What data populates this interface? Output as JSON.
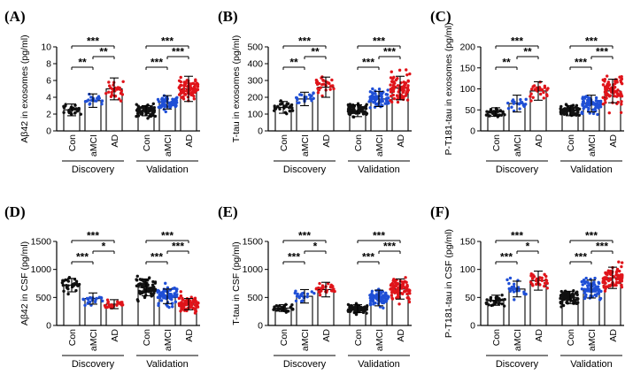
{
  "colors": {
    "Con": "#111111",
    "aMCI": "#1f4fd6",
    "AD": "#e0141a"
  },
  "chart_data": [
    {
      "panel": "(A)",
      "type": "bar",
      "ylabel": "Aβ42 in exosomes (pg/ml)",
      "ylim": [
        0,
        10
      ],
      "yticks": [
        0,
        2,
        4,
        6,
        8,
        10
      ],
      "categories": [
        "Con",
        "aMCI",
        "AD",
        "Con",
        "aMCI",
        "AD"
      ],
      "groups": [
        "Discovery",
        "Validation"
      ],
      "means": [
        2.5,
        3.6,
        5.0,
        2.4,
        3.4,
        5.0
      ],
      "sd": [
        0.7,
        0.8,
        1.3,
        0.6,
        0.8,
        1.5
      ],
      "spread": [
        1.0,
        1.0,
        1.6,
        1.0,
        1.1,
        1.8
      ],
      "n": [
        28,
        20,
        28,
        75,
        70,
        80
      ],
      "sig": [
        {
          "from": 0,
          "to": 1,
          "text": "**",
          "level": 0
        },
        {
          "from": 1,
          "to": 2,
          "text": "**",
          "level": 1
        },
        {
          "from": 0,
          "to": 2,
          "text": "***",
          "level": 2
        },
        {
          "from": 3,
          "to": 4,
          "text": "***",
          "level": 0
        },
        {
          "from": 4,
          "to": 5,
          "text": "***",
          "level": 1
        },
        {
          "from": 3,
          "to": 5,
          "text": "***",
          "level": 2
        }
      ]
    },
    {
      "panel": "(B)",
      "type": "bar",
      "ylabel": "T-tau in exosomes (pg/ml)",
      "ylim": [
        0,
        500
      ],
      "yticks": [
        0,
        100,
        200,
        300,
        400,
        500
      ],
      "categories": [
        "Con",
        "aMCI",
        "AD",
        "Con",
        "aMCI",
        "AD"
      ],
      "groups": [
        "Discovery",
        "Validation"
      ],
      "means": [
        140,
        190,
        260,
        120,
        190,
        255
      ],
      "sd": [
        35,
        40,
        60,
        35,
        45,
        70
      ],
      "spread": [
        50,
        60,
        80,
        55,
        70,
        110
      ],
      "n": [
        28,
        20,
        28,
        75,
        70,
        80
      ],
      "sig": [
        {
          "from": 0,
          "to": 1,
          "text": "**",
          "level": 0
        },
        {
          "from": 1,
          "to": 2,
          "text": "**",
          "level": 1
        },
        {
          "from": 0,
          "to": 2,
          "text": "***",
          "level": 2
        },
        {
          "from": 3,
          "to": 4,
          "text": "***",
          "level": 0
        },
        {
          "from": 4,
          "to": 5,
          "text": "***",
          "level": 1
        },
        {
          "from": 3,
          "to": 5,
          "text": "***",
          "level": 2
        }
      ]
    },
    {
      "panel": "(C)",
      "type": "bar",
      "ylabel": "P-T181-tau in exosomes (pg/ml)",
      "ylim": [
        0,
        200
      ],
      "yticks": [
        0,
        50,
        100,
        150,
        200
      ],
      "categories": [
        "Con",
        "aMCI",
        "AD",
        "Con",
        "aMCI",
        "AD"
      ],
      "groups": [
        "Discovery",
        "Validation"
      ],
      "means": [
        45,
        65,
        95,
        48,
        65,
        95
      ],
      "sd": [
        10,
        20,
        22,
        12,
        20,
        28
      ],
      "spread": [
        15,
        30,
        35,
        20,
        30,
        50
      ],
      "n": [
        28,
        20,
        28,
        75,
        70,
        80
      ],
      "sig": [
        {
          "from": 0,
          "to": 1,
          "text": "**",
          "level": 0
        },
        {
          "from": 1,
          "to": 2,
          "text": "**",
          "level": 1
        },
        {
          "from": 0,
          "to": 2,
          "text": "***",
          "level": 2
        },
        {
          "from": 3,
          "to": 4,
          "text": "***",
          "level": 0
        },
        {
          "from": 4,
          "to": 5,
          "text": "***",
          "level": 1
        },
        {
          "from": 3,
          "to": 5,
          "text": "***",
          "level": 2
        }
      ]
    },
    {
      "panel": "(D)",
      "type": "bar",
      "ylabel": "Aβ42 in CSF (pg/ml)",
      "ylim": [
        0,
        1500
      ],
      "yticks": [
        0,
        500,
        1000,
        1500
      ],
      "categories": [
        "Con",
        "aMCI",
        "AD",
        "Con",
        "aMCI",
        "AD"
      ],
      "groups": [
        "Discovery",
        "Validation"
      ],
      "means": [
        720,
        480,
        380,
        680,
        520,
        380
      ],
      "sd": [
        120,
        100,
        80,
        150,
        130,
        100
      ],
      "spread": [
        200,
        140,
        110,
        260,
        230,
        200
      ],
      "n": [
        28,
        20,
        28,
        75,
        70,
        80
      ],
      "sig": [
        {
          "from": 0,
          "to": 1,
          "text": "***",
          "level": 0
        },
        {
          "from": 1,
          "to": 2,
          "text": "*",
          "level": 1
        },
        {
          "from": 0,
          "to": 2,
          "text": "***",
          "level": 2
        },
        {
          "from": 3,
          "to": 4,
          "text": "***",
          "level": 0
        },
        {
          "from": 4,
          "to": 5,
          "text": "***",
          "level": 1
        },
        {
          "from": 3,
          "to": 5,
          "text": "***",
          "level": 2
        }
      ]
    },
    {
      "panel": "(E)",
      "type": "bar",
      "ylabel": "T-tau in CSF (pg/ml)",
      "ylim": [
        0,
        1500
      ],
      "yticks": [
        0,
        500,
        1000,
        1500
      ],
      "categories": [
        "Con",
        "aMCI",
        "AD",
        "Con",
        "aMCI",
        "AD"
      ],
      "groups": [
        "Discovery",
        "Validation"
      ],
      "means": [
        310,
        520,
        640,
        300,
        490,
        650
      ],
      "sd": [
        60,
        120,
        130,
        70,
        140,
        180
      ],
      "spread": [
        90,
        180,
        200,
        110,
        220,
        280
      ],
      "n": [
        28,
        20,
        28,
        75,
        70,
        80
      ],
      "sig": [
        {
          "from": 0,
          "to": 1,
          "text": "***",
          "level": 0
        },
        {
          "from": 1,
          "to": 2,
          "text": "*",
          "level": 1
        },
        {
          "from": 0,
          "to": 2,
          "text": "***",
          "level": 2
        },
        {
          "from": 3,
          "to": 4,
          "text": "***",
          "level": 0
        },
        {
          "from": 4,
          "to": 5,
          "text": "***",
          "level": 1
        },
        {
          "from": 3,
          "to": 5,
          "text": "***",
          "level": 2
        }
      ]
    },
    {
      "panel": "(F)",
      "type": "bar",
      "ylabel": "P-T181-tau in CSF (pg/ml)",
      "ylim": [
        0,
        150
      ],
      "yticks": [
        0,
        50,
        100,
        150
      ],
      "categories": [
        "Con",
        "aMCI",
        "AD",
        "Con",
        "aMCI",
        "AD"
      ],
      "groups": [
        "Discovery",
        "Validation"
      ],
      "means": [
        45,
        65,
        80,
        50,
        65,
        85
      ],
      "sd": [
        9,
        14,
        17,
        11,
        16,
        19
      ],
      "spread": [
        14,
        22,
        26,
        18,
        25,
        30
      ],
      "n": [
        28,
        20,
        28,
        75,
        70,
        80
      ],
      "sig": [
        {
          "from": 0,
          "to": 1,
          "text": "***",
          "level": 0
        },
        {
          "from": 1,
          "to": 2,
          "text": "*",
          "level": 1
        },
        {
          "from": 0,
          "to": 2,
          "text": "***",
          "level": 2
        },
        {
          "from": 3,
          "to": 4,
          "text": "***",
          "level": 0
        },
        {
          "from": 4,
          "to": 5,
          "text": "***",
          "level": 1
        },
        {
          "from": 3,
          "to": 5,
          "text": "***",
          "level": 2
        }
      ]
    }
  ]
}
